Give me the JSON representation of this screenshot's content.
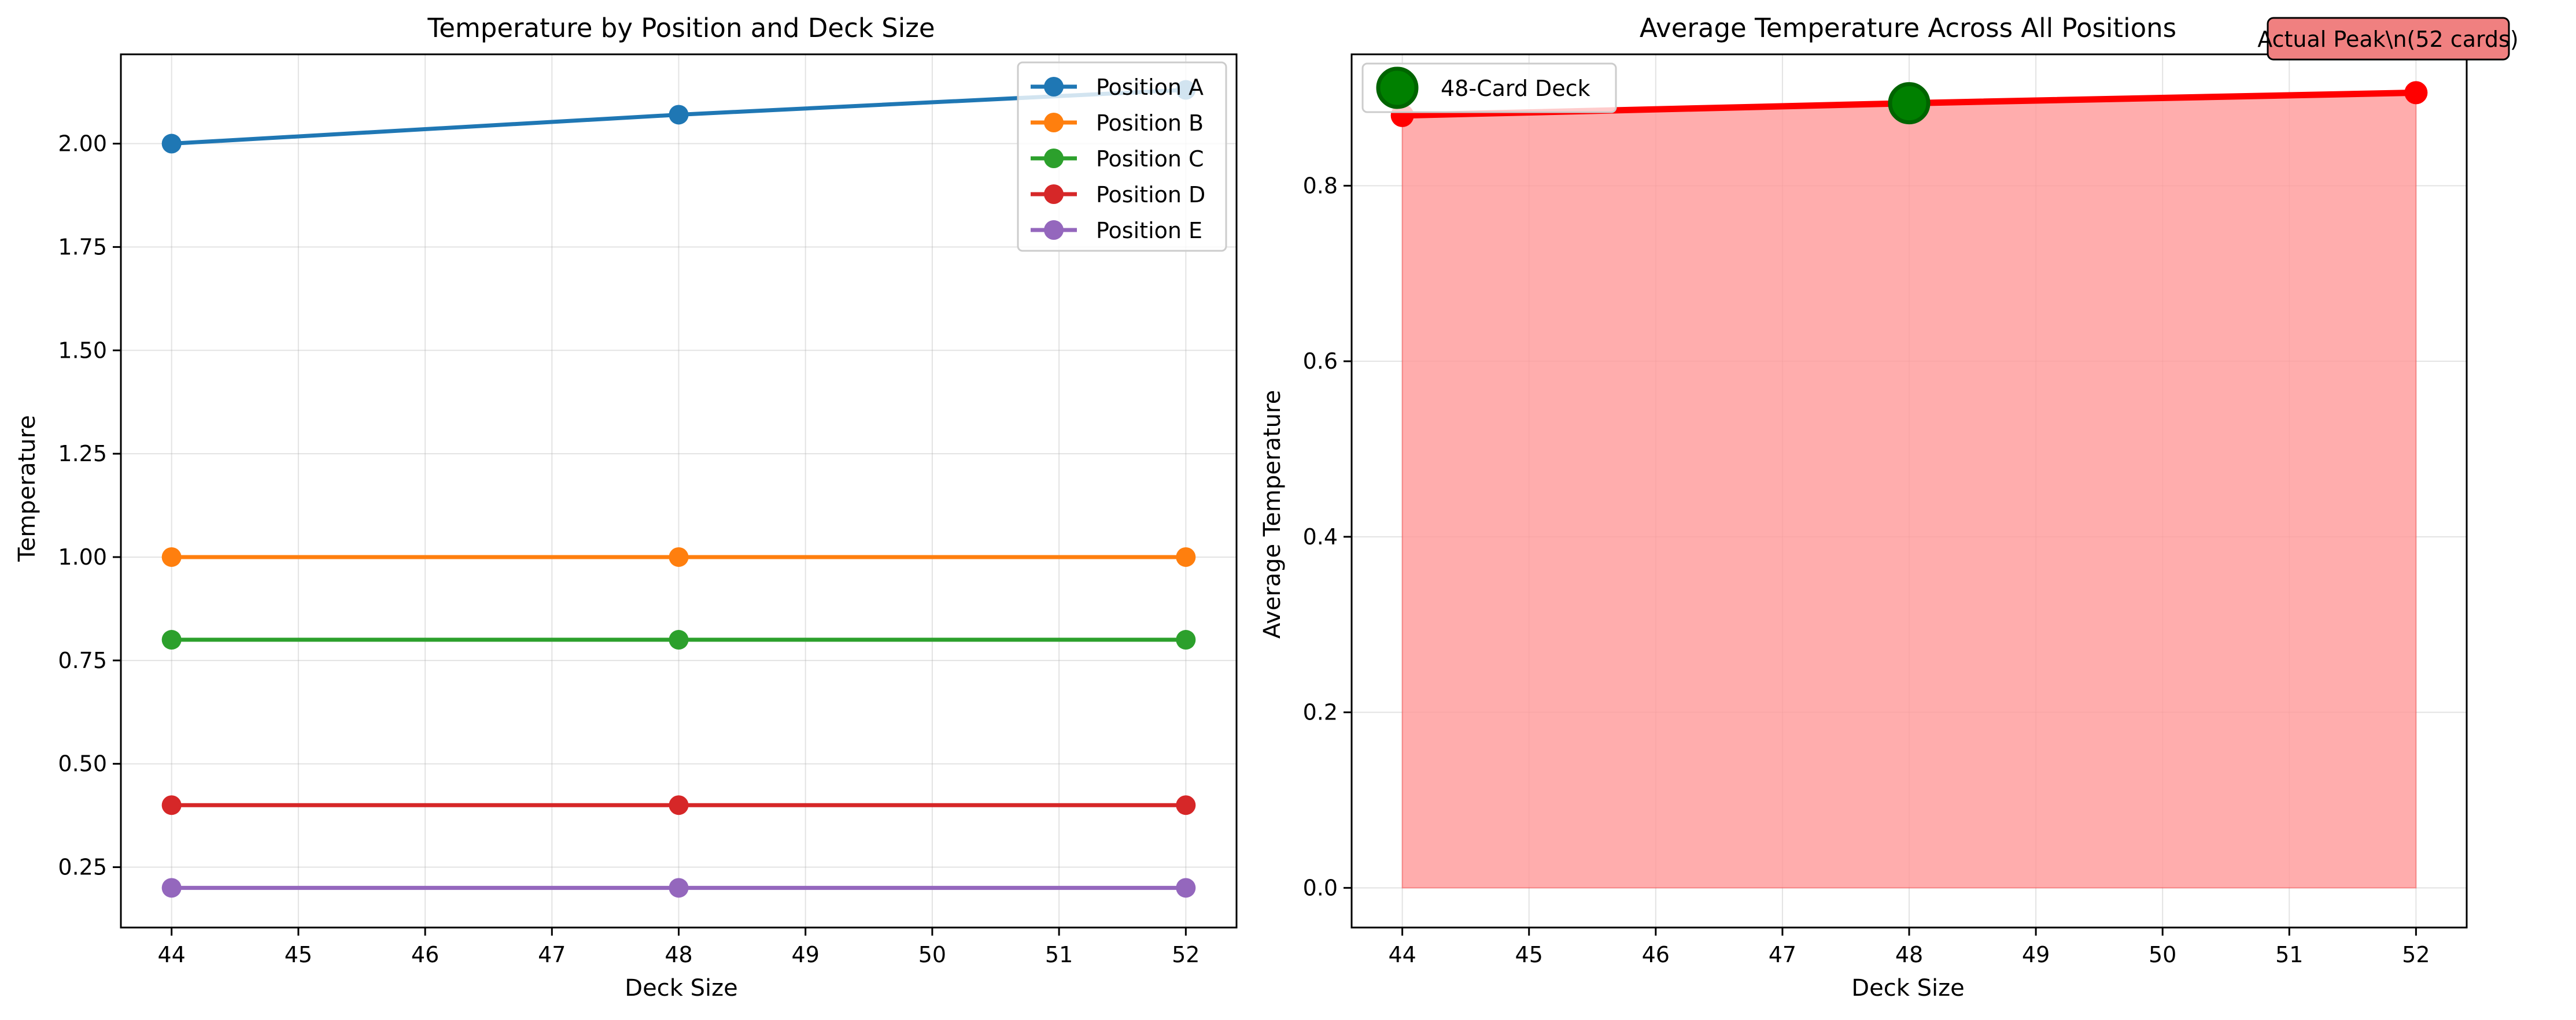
{
  "chart_data": [
    {
      "type": "line",
      "title": "Temperature by Position and Deck Size",
      "xlabel": "Deck Size",
      "ylabel": "Temperature",
      "xlim": [
        43.6,
        52.4
      ],
      "ylim": [
        0.104,
        2.216
      ],
      "x_ticks": [
        44,
        45,
        46,
        47,
        48,
        49,
        50,
        51,
        52
      ],
      "y_ticks": [
        0.25,
        0.5,
        0.75,
        1.0,
        1.25,
        1.5,
        1.75,
        2.0
      ],
      "grid": true,
      "legend_position": "top-right",
      "x": [
        44,
        48,
        52
      ],
      "series": [
        {
          "name": "Position A",
          "color": "#1f77b4",
          "values": [
            2.0,
            2.07,
            2.13
          ]
        },
        {
          "name": "Position B",
          "color": "#ff7f0e",
          "values": [
            1.0,
            1.0,
            1.0
          ]
        },
        {
          "name": "Position C",
          "color": "#2ca02c",
          "values": [
            0.8,
            0.8,
            0.8
          ]
        },
        {
          "name": "Position D",
          "color": "#d62728",
          "values": [
            0.4,
            0.4,
            0.4
          ]
        },
        {
          "name": "Position E",
          "color": "#9467bd",
          "values": [
            0.2,
            0.2,
            0.2
          ]
        }
      ]
    },
    {
      "type": "area",
      "title": "Average Temperature Across All Positions",
      "xlabel": "Deck Size",
      "ylabel": "Average Temperature",
      "xlim": [
        43.6,
        52.4
      ],
      "ylim": [
        -0.0452,
        0.9497
      ],
      "x_ticks": [
        44,
        45,
        46,
        47,
        48,
        49,
        50,
        51,
        52
      ],
      "y_ticks": [
        0.0,
        0.2,
        0.4,
        0.6,
        0.8
      ],
      "grid": true,
      "legend_position": "top-left",
      "x": [
        44,
        48,
        52
      ],
      "series": [
        {
          "color": "#ff0000",
          "fill_color": "#ff9999",
          "values": [
            0.88,
            0.894,
            0.906
          ]
        }
      ],
      "highlight": {
        "name": "48-Card Deck",
        "x": 48,
        "y": 0.894,
        "color": "#008000",
        "edge_color": "#006400"
      },
      "annotation": {
        "text": "Actual Peak\\n(52 cards)",
        "color": "#f08080"
      }
    }
  ]
}
